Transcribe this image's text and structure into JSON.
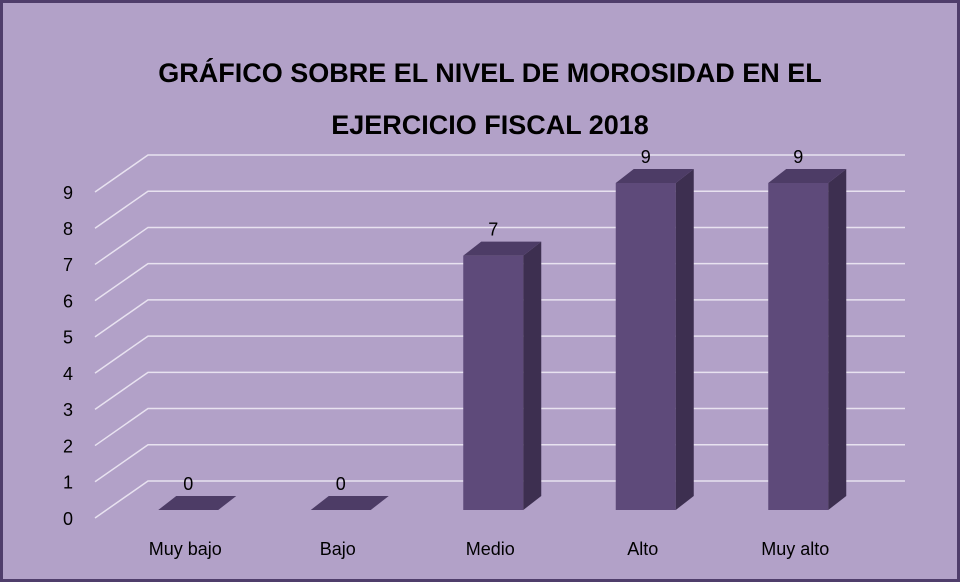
{
  "chart_data": {
    "type": "bar3d",
    "title": [
      "GRÁFICO  SOBRE EL NIVEL DE MOROSIDAD EN EL",
      "EJERCICIO FISCAL 2018"
    ],
    "categories": [
      "Muy bajo",
      "Bajo",
      "Medio",
      "Alto",
      "Muy alto"
    ],
    "values": [
      0,
      0,
      7,
      9,
      9
    ],
    "color": "#5e4a7a",
    "ylim": [
      0,
      9
    ],
    "yticks": [
      0,
      1,
      2,
      3,
      4,
      5,
      6,
      7,
      8,
      9
    ],
    "grid": true
  }
}
